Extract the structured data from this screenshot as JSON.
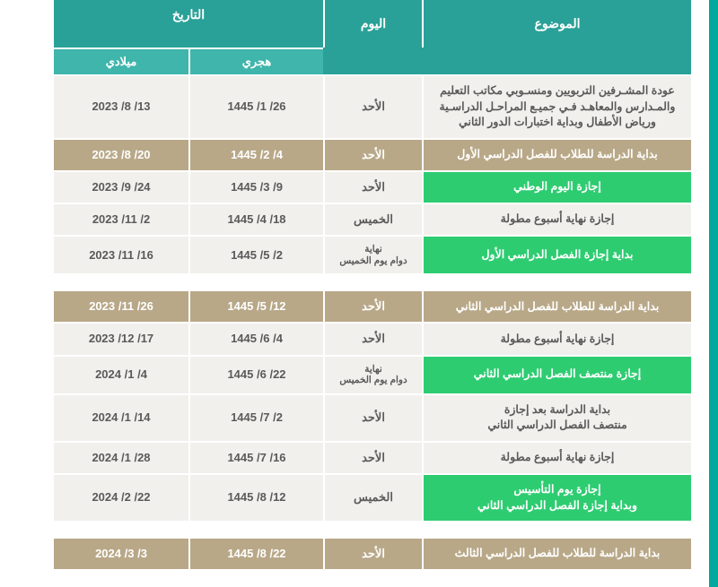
{
  "colors": {
    "accent_border": "#00a99d",
    "header_main": "#2aa198",
    "header_sub": "#3fb5ab",
    "row_green": "#2ecc71",
    "row_tan": "#b8a888",
    "row_light": "#f2f0ed",
    "text_dark": "#5a5a5a",
    "text_white": "#ffffff"
  },
  "headers": {
    "subject": "الموضوع",
    "day": "اليوم",
    "date": "التاريخ",
    "hijri": "هجري",
    "gregorian": "ميلادي"
  },
  "sections": [
    {
      "rows": [
        {
          "subject": "عودة المشـرفين التربويين ومنسـوبي مكاتب التعليم والمـدارس والمعاهـد فـي جميـع المراحـل الدراسـية ورياض الأطفال وبداية اختبارات الدور الثاني",
          "day": "الأحد",
          "hijri": "26/ 1/ 1445",
          "greg": "13/ 8/ 2023",
          "style": "light",
          "tall": true
        },
        {
          "subject": "بداية الدراسة للطلاب للفصل الدراسي الأول",
          "day": "الأحد",
          "hijri": "4/ 2/ 1445",
          "greg": "20/ 8/ 2023",
          "style": "tan"
        },
        {
          "subject": "إجازة اليوم الوطني",
          "day": "الأحد",
          "hijri": "9/ 3/ 1445",
          "greg": "24/ 9/ 2023",
          "style": "green"
        },
        {
          "subject": "إجازة نهاية أسبوع مطولة",
          "day": "الخميس",
          "hijri": "18/ 4/ 1445",
          "greg": "2/ 11/ 2023",
          "style": "light"
        },
        {
          "subject": "بداية إجازة الفصل الدراسي الأول",
          "day": "نهاية\nدوام يوم الخميس",
          "hijri": "2/ 5/ 1445",
          "greg": "16/ 11/ 2023",
          "style": "green",
          "daySmall": true
        }
      ]
    },
    {
      "rows": [
        {
          "subject": "بداية الدراسة للطلاب للفصل الدراسي الثاني",
          "day": "الأحد",
          "hijri": "12/ 5/ 1445",
          "greg": "26/ 11/ 2023",
          "style": "tan"
        },
        {
          "subject": "إجازة نهاية أسبوع مطولة",
          "day": "الأحد",
          "hijri": "4/ 6/ 1445",
          "greg": "17/ 12/ 2023",
          "style": "light"
        },
        {
          "subject": "إجازة منتصف الفصل الدراسي الثاني",
          "day": "نهاية\nدوام يوم الخميس",
          "hijri": "22/ 6/ 1445",
          "greg": "4/ 1/ 2024",
          "style": "green",
          "daySmall": true
        },
        {
          "subject": "بداية الدراسة بعد إجازة\nمنتصف الفصل الدراسي الثاني",
          "day": "الأحد",
          "hijri": "2/ 7/ 1445",
          "greg": "14/ 1/ 2024",
          "style": "light"
        },
        {
          "subject": "إجازة نهاية أسبوع مطولة",
          "day": "الأحد",
          "hijri": "16/ 7/ 1445",
          "greg": "28/ 1/ 2024",
          "style": "light"
        },
        {
          "subject": "إجازة يوم التأسيس\nوبداية إجازة الفصل الدراسي الثاني",
          "day": "الخميس",
          "hijri": "12/ 8/ 1445",
          "greg": "22/ 2/ 2024",
          "style": "green"
        }
      ]
    },
    {
      "rows": [
        {
          "subject": "بداية الدراسة للطلاب للفصل الدراسي الثالث",
          "day": "الأحد",
          "hijri": "22/ 8/ 1445",
          "greg": "3/ 3/ 2024",
          "style": "tan"
        }
      ]
    }
  ]
}
